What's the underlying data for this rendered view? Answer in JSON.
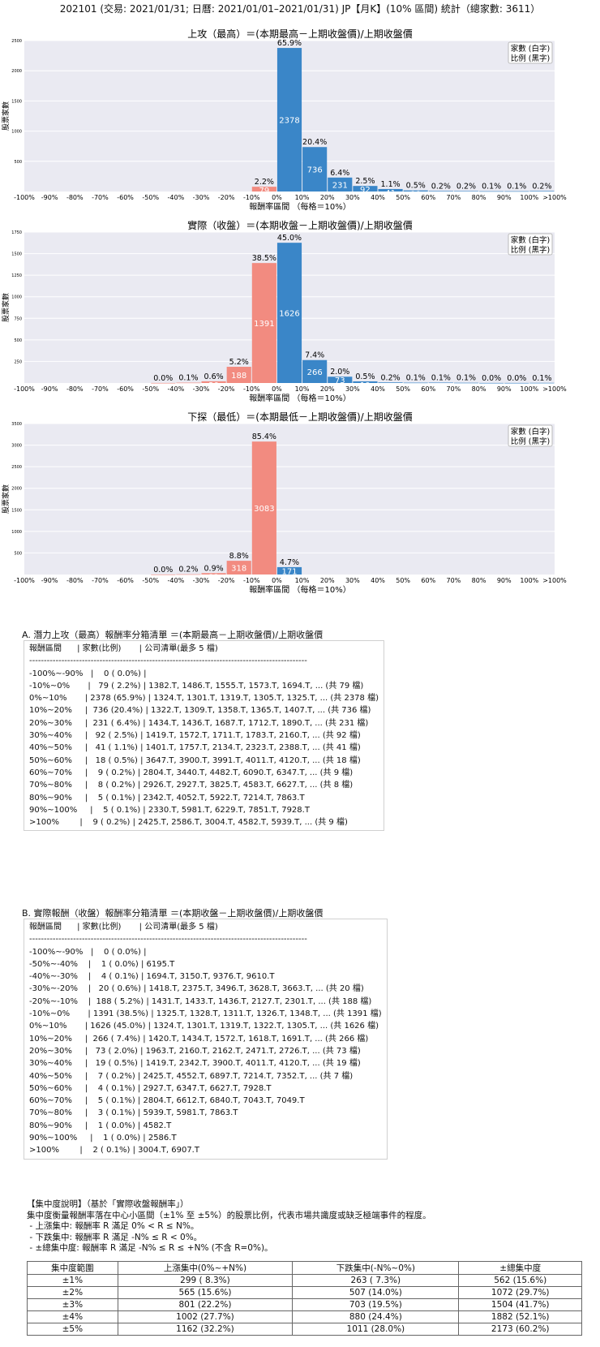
{
  "main_title": "202101 (交易: 2021/01/31; 日曆: 2021/01/01–2021/01/31) JP【月K】(10% 區間) 統計（總家數: 3611）",
  "legend": {
    "line1": "家數 (白字)",
    "line2": "比例 (黑字)"
  },
  "chart_data": [
    {
      "type": "bar",
      "title": "上攻（最高）＝(本期最高－上期收盤價)/上期收盤價",
      "xlabel": "報酬率區間 （每格＝10%）",
      "ylabel": "股票家數",
      "xticks": [
        "-100%",
        "-90%",
        "-80%",
        "-70%",
        "-60%",
        "-50%",
        "-40%",
        "-30%",
        "-20%",
        "-10%",
        "0%",
        "10%",
        "20%",
        "30%",
        "40%",
        "50%",
        "60%",
        "70%",
        "80%",
        "90%",
        "100%",
        ">100%"
      ],
      "yticks": [
        500,
        1000,
        1500,
        2000,
        2500
      ],
      "ylim": [
        0,
        2500
      ],
      "bars": [
        {
          "bin": 9,
          "count": 79,
          "pct": "2.2%",
          "color": "#f28b80"
        },
        {
          "bin": 10,
          "count": 2378,
          "pct": "65.9%",
          "color": "#3a86c8"
        },
        {
          "bin": 11,
          "count": 736,
          "pct": "20.4%",
          "color": "#3a86c8"
        },
        {
          "bin": 12,
          "count": 231,
          "pct": "6.4%",
          "color": "#3a86c8"
        },
        {
          "bin": 13,
          "count": 92,
          "pct": "2.5%",
          "color": "#3a86c8"
        },
        {
          "bin": 14,
          "count": 41,
          "pct": "1.1%",
          "color": "#3a86c8"
        },
        {
          "bin": 15,
          "count": 18,
          "pct": "0.5%",
          "color": "#3a86c8"
        },
        {
          "bin": 16,
          "count": 9,
          "pct": "0.2%",
          "color": "#3a86c8"
        },
        {
          "bin": 17,
          "count": 8,
          "pct": "0.2%",
          "color": "#3a86c8"
        },
        {
          "bin": 18,
          "count": 5,
          "pct": "0.1%",
          "color": "#3a86c8"
        },
        {
          "bin": 19,
          "count": 5,
          "pct": "0.1%",
          "color": "#3a86c8"
        },
        {
          "bin": 20,
          "count": 9,
          "pct": "0.2%",
          "color": "#3a86c8"
        }
      ]
    },
    {
      "type": "bar",
      "title": "實際（收盤）＝(本期收盤－上期收盤價)/上期收盤價",
      "xlabel": "報酬率區間 （每格＝10%）",
      "ylabel": "股票家數",
      "xticks": [
        "-100%",
        "-90%",
        "-80%",
        "-70%",
        "-60%",
        "-50%",
        "-40%",
        "-30%",
        "-20%",
        "-10%",
        "0%",
        "10%",
        "20%",
        "30%",
        "40%",
        "50%",
        "60%",
        "70%",
        "80%",
        "90%",
        "100%",
        ">100%"
      ],
      "yticks": [
        250,
        500,
        750,
        1000,
        1250,
        1500,
        1750
      ],
      "ylim": [
        0,
        1750
      ],
      "bars": [
        {
          "bin": 5,
          "count": 1,
          "pct": "0.0%",
          "color": "#f28b80"
        },
        {
          "bin": 6,
          "count": 4,
          "pct": "0.1%",
          "color": "#f28b80"
        },
        {
          "bin": 7,
          "count": 20,
          "pct": "0.6%",
          "color": "#f28b80"
        },
        {
          "bin": 8,
          "count": 188,
          "pct": "5.2%",
          "color": "#f28b80"
        },
        {
          "bin": 9,
          "count": 1391,
          "pct": "38.5%",
          "color": "#f28b80"
        },
        {
          "bin": 10,
          "count": 1626,
          "pct": "45.0%",
          "color": "#3a86c8"
        },
        {
          "bin": 11,
          "count": 266,
          "pct": "7.4%",
          "color": "#3a86c8"
        },
        {
          "bin": 12,
          "count": 73,
          "pct": "2.0%",
          "color": "#3a86c8"
        },
        {
          "bin": 13,
          "count": 19,
          "pct": "0.5%",
          "color": "#3a86c8"
        },
        {
          "bin": 14,
          "count": 7,
          "pct": "0.2%",
          "color": "#3a86c8"
        },
        {
          "bin": 15,
          "count": 4,
          "pct": "0.1%",
          "color": "#3a86c8"
        },
        {
          "bin": 16,
          "count": 5,
          "pct": "0.1%",
          "color": "#3a86c8"
        },
        {
          "bin": 17,
          "count": 3,
          "pct": "0.1%",
          "color": "#3a86c8"
        },
        {
          "bin": 18,
          "count": 1,
          "pct": "0.0%",
          "color": "#3a86c8"
        },
        {
          "bin": 19,
          "count": 1,
          "pct": "0.0%",
          "color": "#3a86c8"
        },
        {
          "bin": 20,
          "count": 2,
          "pct": "0.1%",
          "color": "#3a86c8"
        }
      ]
    },
    {
      "type": "bar",
      "title": "下探（最低）＝(本期最低－上期收盤價)/上期收盤價",
      "xlabel": "報酬率區間 （每格＝10%）",
      "ylabel": "股票家數",
      "xticks": [
        "-100%",
        "-90%",
        "-80%",
        "-70%",
        "-60%",
        "-50%",
        "-40%",
        "-30%",
        "-20%",
        "-10%",
        "0%",
        "10%",
        "20%",
        "30%",
        "40%",
        "50%",
        "60%",
        "70%",
        "80%",
        "90%",
        "100%",
        ">100%"
      ],
      "yticks": [
        500,
        1000,
        1500,
        2000,
        2500,
        3000,
        3500
      ],
      "ylim": [
        0,
        3500
      ],
      "bars": [
        {
          "bin": 5,
          "count": 1,
          "pct": "0.0%",
          "color": "#f28b80"
        },
        {
          "bin": 6,
          "count": 6,
          "pct": "0.2%",
          "color": "#f28b80"
        },
        {
          "bin": 7,
          "count": 32,
          "pct": "0.9%",
          "color": "#f28b80"
        },
        {
          "bin": 8,
          "count": 318,
          "pct": "8.8%",
          "color": "#f28b80"
        },
        {
          "bin": 9,
          "count": 3083,
          "pct": "85.4%",
          "color": "#f28b80"
        },
        {
          "bin": 10,
          "count": 171,
          "pct": "4.7%",
          "color": "#3a86c8"
        }
      ]
    }
  ],
  "section_a": {
    "title": "A. 潛力上攻（最高）報酬率分箱清單 ＝(本期最高－上期收盤價)/上期收盤價",
    "lines": [
      "報酬區間      | 家數(比例)       | 公司清單(最多 5 檔)",
      "-----------------------------------------------------------------------------------------------",
      "-100%~-90%   |    0 ( 0.0%) |",
      "-10%~0%       |   79 ( 2.2%) | 1382.T, 1486.T, 1555.T, 1573.T, 1694.T, ... (共 79 檔)",
      "0%~10%       | 2378 (65.9%) | 1324.T, 1301.T, 1319.T, 1305.T, 1325.T, ... (共 2378 檔)",
      "10%~20%     |  736 (20.4%) | 1322.T, 1309.T, 1358.T, 1365.T, 1407.T, ... (共 736 檔)",
      "20%~30%     |  231 ( 6.4%) | 1434.T, 1436.T, 1687.T, 1712.T, 1890.T, ... (共 231 檔)",
      "30%~40%     |   92 ( 2.5%) | 1419.T, 1572.T, 1711.T, 1783.T, 2160.T, ... (共 92 檔)",
      "40%~50%     |   41 ( 1.1%) | 1401.T, 1757.T, 2134.T, 2323.T, 2388.T, ... (共 41 檔)",
      "50%~60%     |   18 ( 0.5%) | 3647.T, 3900.T, 3991.T, 4011.T, 4120.T, ... (共 18 檔)",
      "60%~70%     |    9 ( 0.2%) | 2804.T, 3440.T, 4482.T, 6090.T, 6347.T, ... (共 9 檔)",
      "70%~80%     |    8 ( 0.2%) | 2926.T, 2927.T, 3825.T, 4583.T, 6627.T, ... (共 8 檔)",
      "80%~90%     |    5 ( 0.1%) | 2342.T, 4052.T, 5922.T, 7214.T, 7863.T",
      "90%~100%     |    5 ( 0.1%) | 2330.T, 5981.T, 6229.T, 7851.T, 7928.T",
      ">100%        |    9 ( 0.2%) | 2425.T, 2586.T, 3004.T, 4582.T, 5939.T, ... (共 9 檔)"
    ]
  },
  "section_b": {
    "title": "B. 實際報酬（收盤）報酬率分箱清單 ＝(本期收盤－上期收盤價)/上期收盤價",
    "lines": [
      "報酬區間      | 家數(比例)       | 公司清單(最多 5 檔)",
      "-----------------------------------------------------------------------------------------------",
      "-100%~-90%   |    0 ( 0.0%) |",
      "-50%~-40%    |    1 ( 0.0%) | 6195.T",
      "-40%~-30%    |    4 ( 0.1%) | 1694.T, 3150.T, 9376.T, 9610.T",
      "-30%~-20%    |   20 ( 0.6%) | 1418.T, 2375.T, 3496.T, 3628.T, 3663.T, ... (共 20 檔)",
      "-20%~-10%    |  188 ( 5.2%) | 1431.T, 1433.T, 1436.T, 2127.T, 2301.T, ... (共 188 檔)",
      "-10%~0%       | 1391 (38.5%) | 1325.T, 1328.T, 1311.T, 1326.T, 1348.T, ... (共 1391 檔)",
      "0%~10%       | 1626 (45.0%) | 1324.T, 1301.T, 1319.T, 1322.T, 1305.T, ... (共 1626 檔)",
      "10%~20%     |  266 ( 7.4%) | 1420.T, 1434.T, 1572.T, 1618.T, 1691.T, ... (共 266 檔)",
      "20%~30%     |   73 ( 2.0%) | 1963.T, 2160.T, 2162.T, 2471.T, 2726.T, ... (共 73 檔)",
      "30%~40%     |   19 ( 0.5%) | 1419.T, 2342.T, 3900.T, 4011.T, 4120.T, ... (共 19 檔)",
      "40%~50%     |    7 ( 0.2%) | 2425.T, 4552.T, 6897.T, 7214.T, 7352.T, ... (共 7 檔)",
      "50%~60%     |    4 ( 0.1%) | 2927.T, 6347.T, 6627.T, 7928.T",
      "60%~70%     |    5 ( 0.1%) | 2804.T, 6612.T, 6840.T, 7043.T, 7049.T",
      "70%~80%     |    3 ( 0.1%) | 5939.T, 5981.T, 7863.T",
      "80%~90%     |    1 ( 0.0%) | 4582.T",
      "90%~100%     |    1 ( 0.0%) | 2586.T",
      ">100%        |    2 ( 0.1%) | 3004.T, 6907.T"
    ]
  },
  "concentration": {
    "heading": "【集中度說明】（基於「實際收盤報酬率」）",
    "lines": [
      "集中度衡量報酬率落在中心小區間（±1% 至 ±5%）的股票比例，代表市場共識度或缺乏極端事件的程度。",
      " - 上漲集中: 報酬率 R 滿足 0% < R ≤ N%。",
      " - 下跌集中: 報酬率 R 滿足 -N% ≤ R < 0%。",
      " - ±總集中度: 報酬率 R 滿足 -N% ≤ R ≤ +N% (不含 R=0%)。"
    ],
    "headers": [
      "集中度範圍",
      "上漲集中(0%~+N%)",
      "下跌集中(-N%~0%)",
      "±總集中度"
    ],
    "rows": [
      [
        "±1%",
        "299 ( 8.3%)",
        "263 ( 7.3%)",
        "562 (15.6%)"
      ],
      [
        "±2%",
        "565 (15.6%)",
        "507 (14.0%)",
        "1072 (29.7%)"
      ],
      [
        "±3%",
        "801 (22.2%)",
        "703 (19.5%)",
        "1504 (41.7%)"
      ],
      [
        "±4%",
        "1002 (27.7%)",
        "880 (24.4%)",
        "1882 (52.1%)"
      ],
      [
        "±5%",
        "1162 (32.2%)",
        "1011 (28.0%)",
        "2173 (60.2%)"
      ]
    ]
  }
}
